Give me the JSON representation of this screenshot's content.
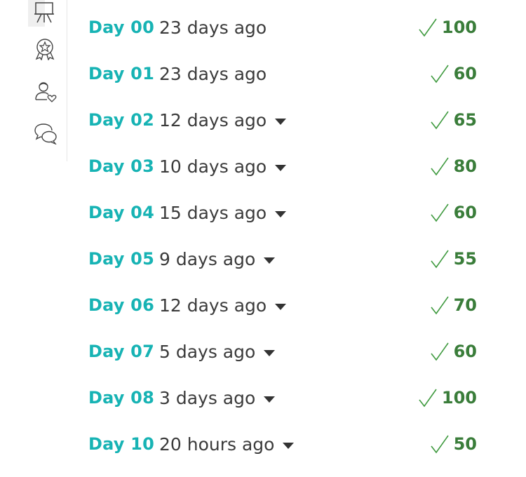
{
  "sidebar": {
    "items": [
      {
        "icon": "presentation-board-icon"
      },
      {
        "icon": "award-badge-icon"
      },
      {
        "icon": "user-favorite-icon"
      },
      {
        "icon": "chat-bubbles-icon"
      }
    ]
  },
  "rows": [
    {
      "day": "Day 00",
      "time": "23 days ago",
      "has_caret": false,
      "score": "100"
    },
    {
      "day": "Day 01",
      "time": "23 days ago",
      "has_caret": false,
      "score": "60"
    },
    {
      "day": "Day 02",
      "time": "12 days ago",
      "has_caret": true,
      "score": "65"
    },
    {
      "day": "Day 03",
      "time": "10 days ago",
      "has_caret": true,
      "score": "80"
    },
    {
      "day": "Day 04",
      "time": "15 days ago",
      "has_caret": true,
      "score": "60"
    },
    {
      "day": "Day 05",
      "time": "9 days ago",
      "has_caret": true,
      "score": "55"
    },
    {
      "day": "Day 06",
      "time": "12 days ago",
      "has_caret": true,
      "score": "70"
    },
    {
      "day": "Day 07",
      "time": "5 days ago",
      "has_caret": true,
      "score": "60"
    },
    {
      "day": "Day 08",
      "time": "3 days ago",
      "has_caret": true,
      "score": "100"
    },
    {
      "day": "Day 10",
      "time": "20 hours ago",
      "has_caret": true,
      "score": "50"
    }
  ],
  "colors": {
    "day_label": "#17b3b4",
    "score": "#3a7d3a",
    "check": "#3f9a3f"
  }
}
